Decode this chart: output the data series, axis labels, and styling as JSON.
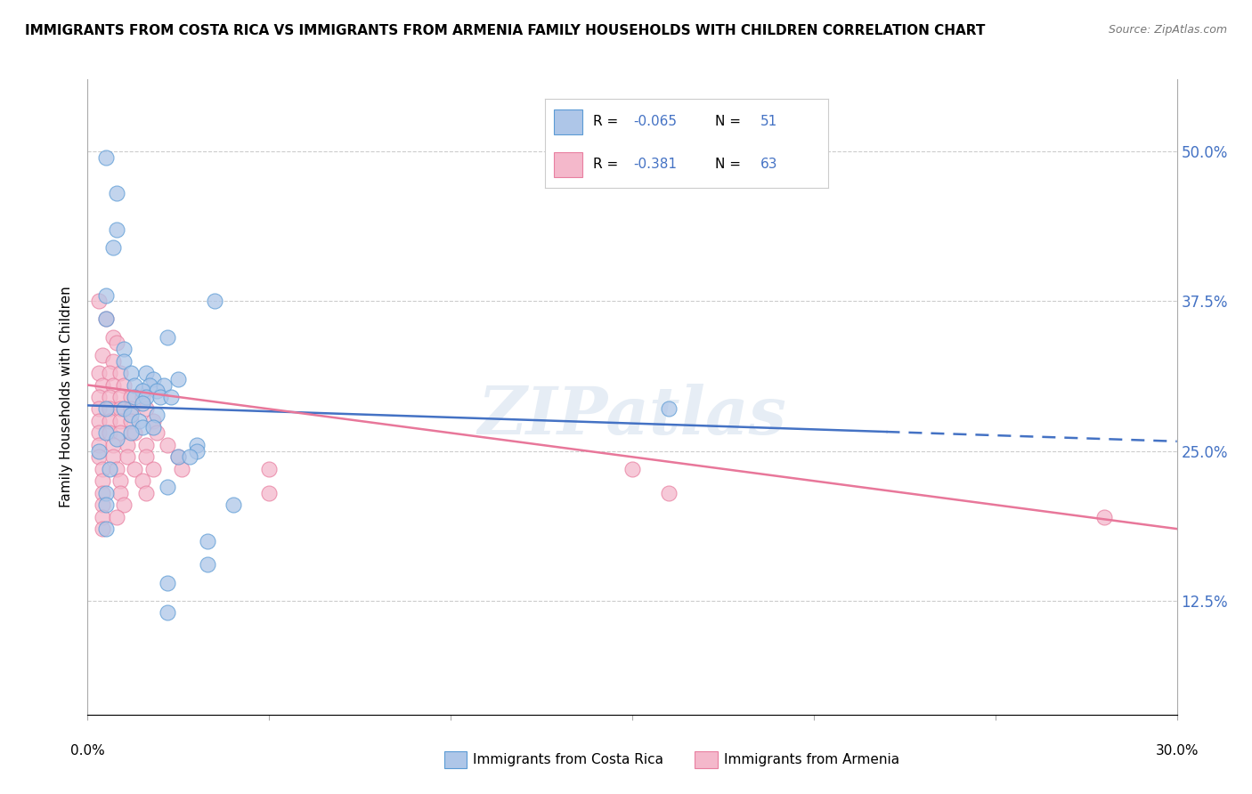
{
  "title": "IMMIGRANTS FROM COSTA RICA VS IMMIGRANTS FROM ARMENIA FAMILY HOUSEHOLDS WITH CHILDREN CORRELATION CHART",
  "source": "Source: ZipAtlas.com",
  "ylabel": "Family Households with Children",
  "y_ticks": [
    0.125,
    0.25,
    0.375,
    0.5
  ],
  "y_tick_labels": [
    "12.5%",
    "25.0%",
    "37.5%",
    "50.0%"
  ],
  "x_min": 0.0,
  "x_max": 0.3,
  "y_min": 0.03,
  "y_max": 0.56,
  "watermark": "ZIPatlas",
  "color_blue_fill": "#aec6e8",
  "color_blue_edge": "#5b9bd5",
  "color_pink_fill": "#f4b8cb",
  "color_pink_edge": "#e87fa0",
  "color_trendline_blue": "#4472c4",
  "color_trendline_pink": "#e8779a",
  "scatter_blue": [
    [
      0.005,
      0.495
    ],
    [
      0.008,
      0.465
    ],
    [
      0.008,
      0.435
    ],
    [
      0.007,
      0.42
    ],
    [
      0.005,
      0.38
    ],
    [
      0.035,
      0.375
    ],
    [
      0.005,
      0.36
    ],
    [
      0.022,
      0.345
    ],
    [
      0.01,
      0.335
    ],
    [
      0.01,
      0.325
    ],
    [
      0.012,
      0.315
    ],
    [
      0.016,
      0.315
    ],
    [
      0.018,
      0.31
    ],
    [
      0.025,
      0.31
    ],
    [
      0.013,
      0.305
    ],
    [
      0.017,
      0.305
    ],
    [
      0.021,
      0.305
    ],
    [
      0.015,
      0.3
    ],
    [
      0.019,
      0.3
    ],
    [
      0.013,
      0.295
    ],
    [
      0.016,
      0.295
    ],
    [
      0.02,
      0.295
    ],
    [
      0.023,
      0.295
    ],
    [
      0.015,
      0.29
    ],
    [
      0.005,
      0.285
    ],
    [
      0.01,
      0.285
    ],
    [
      0.012,
      0.28
    ],
    [
      0.019,
      0.28
    ],
    [
      0.014,
      0.275
    ],
    [
      0.015,
      0.27
    ],
    [
      0.018,
      0.27
    ],
    [
      0.005,
      0.265
    ],
    [
      0.012,
      0.265
    ],
    [
      0.008,
      0.26
    ],
    [
      0.003,
      0.25
    ],
    [
      0.03,
      0.255
    ],
    [
      0.03,
      0.25
    ],
    [
      0.025,
      0.245
    ],
    [
      0.028,
      0.245
    ],
    [
      0.006,
      0.235
    ],
    [
      0.022,
      0.22
    ],
    [
      0.005,
      0.215
    ],
    [
      0.005,
      0.205
    ],
    [
      0.04,
      0.205
    ],
    [
      0.005,
      0.185
    ],
    [
      0.033,
      0.175
    ],
    [
      0.033,
      0.155
    ],
    [
      0.022,
      0.14
    ],
    [
      0.022,
      0.115
    ],
    [
      0.16,
      0.285
    ]
  ],
  "scatter_pink": [
    [
      0.003,
      0.375
    ],
    [
      0.005,
      0.36
    ],
    [
      0.007,
      0.345
    ],
    [
      0.008,
      0.34
    ],
    [
      0.004,
      0.33
    ],
    [
      0.007,
      0.325
    ],
    [
      0.003,
      0.315
    ],
    [
      0.006,
      0.315
    ],
    [
      0.009,
      0.315
    ],
    [
      0.004,
      0.305
    ],
    [
      0.007,
      0.305
    ],
    [
      0.01,
      0.305
    ],
    [
      0.003,
      0.295
    ],
    [
      0.006,
      0.295
    ],
    [
      0.009,
      0.295
    ],
    [
      0.012,
      0.295
    ],
    [
      0.015,
      0.295
    ],
    [
      0.003,
      0.285
    ],
    [
      0.006,
      0.285
    ],
    [
      0.009,
      0.285
    ],
    [
      0.012,
      0.285
    ],
    [
      0.016,
      0.285
    ],
    [
      0.003,
      0.275
    ],
    [
      0.006,
      0.275
    ],
    [
      0.009,
      0.275
    ],
    [
      0.012,
      0.275
    ],
    [
      0.018,
      0.275
    ],
    [
      0.003,
      0.265
    ],
    [
      0.006,
      0.265
    ],
    [
      0.009,
      0.265
    ],
    [
      0.013,
      0.265
    ],
    [
      0.019,
      0.265
    ],
    [
      0.003,
      0.255
    ],
    [
      0.007,
      0.255
    ],
    [
      0.011,
      0.255
    ],
    [
      0.016,
      0.255
    ],
    [
      0.022,
      0.255
    ],
    [
      0.003,
      0.245
    ],
    [
      0.007,
      0.245
    ],
    [
      0.011,
      0.245
    ],
    [
      0.016,
      0.245
    ],
    [
      0.025,
      0.245
    ],
    [
      0.004,
      0.235
    ],
    [
      0.008,
      0.235
    ],
    [
      0.013,
      0.235
    ],
    [
      0.018,
      0.235
    ],
    [
      0.026,
      0.235
    ],
    [
      0.004,
      0.225
    ],
    [
      0.009,
      0.225
    ],
    [
      0.015,
      0.225
    ],
    [
      0.004,
      0.215
    ],
    [
      0.009,
      0.215
    ],
    [
      0.016,
      0.215
    ],
    [
      0.004,
      0.205
    ],
    [
      0.01,
      0.205
    ],
    [
      0.004,
      0.195
    ],
    [
      0.008,
      0.195
    ],
    [
      0.004,
      0.185
    ],
    [
      0.05,
      0.235
    ],
    [
      0.05,
      0.215
    ],
    [
      0.15,
      0.235
    ],
    [
      0.16,
      0.215
    ],
    [
      0.28,
      0.195
    ]
  ],
  "trendline_blue": {
    "x_start": 0.0,
    "y_start": 0.288,
    "x_end": 0.3,
    "y_end": 0.258
  },
  "trendline_blue_dashed_start": 0.22,
  "trendline_pink": {
    "x_start": 0.0,
    "y_start": 0.305,
    "x_end": 0.3,
    "y_end": 0.185
  }
}
